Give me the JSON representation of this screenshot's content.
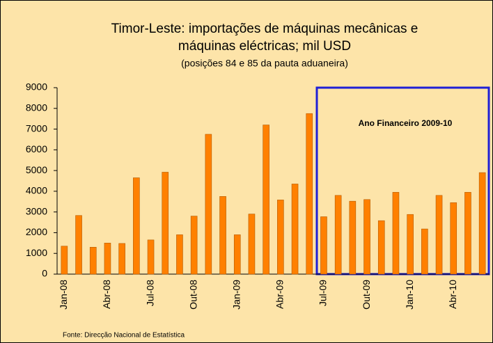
{
  "chart_data": {
    "type": "bar",
    "title": "Timor-Leste: importações de máquinas mecânicas e",
    "title_line2": "máquinas eléctricas; mil USD",
    "subtitle": "(posições 84 e 85 da pauta aduaneira)",
    "source": "Fonte: Direcção Nacional de Estatística",
    "annotation": "Ano Financeiro 2009-10",
    "categories": [
      "Jan-08",
      null,
      null,
      "Abr-08",
      null,
      null,
      "Jul-08",
      null,
      null,
      "Out-08",
      null,
      null,
      "Jan-09",
      null,
      null,
      "Abr-09",
      null,
      null,
      "Jul-09",
      null,
      null,
      "Out-09",
      null,
      null,
      "Jan-10",
      null,
      null,
      "Abr-10",
      null,
      null
    ],
    "values": [
      1350,
      2830,
      1300,
      1500,
      1480,
      4650,
      1650,
      4920,
      1900,
      2800,
      6750,
      3750,
      1900,
      2900,
      7200,
      3580,
      4350,
      7750,
      2770,
      3800,
      3520,
      3600,
      2580,
      3950,
      2880,
      2180,
      3800,
      3450,
      3950,
      4900
    ],
    "color": "#ff8000",
    "ylim": [
      0,
      9000
    ],
    "yticks": [
      0,
      1000,
      2000,
      3000,
      4000,
      5000,
      6000,
      7000,
      8000,
      9000
    ],
    "grid": false
  }
}
